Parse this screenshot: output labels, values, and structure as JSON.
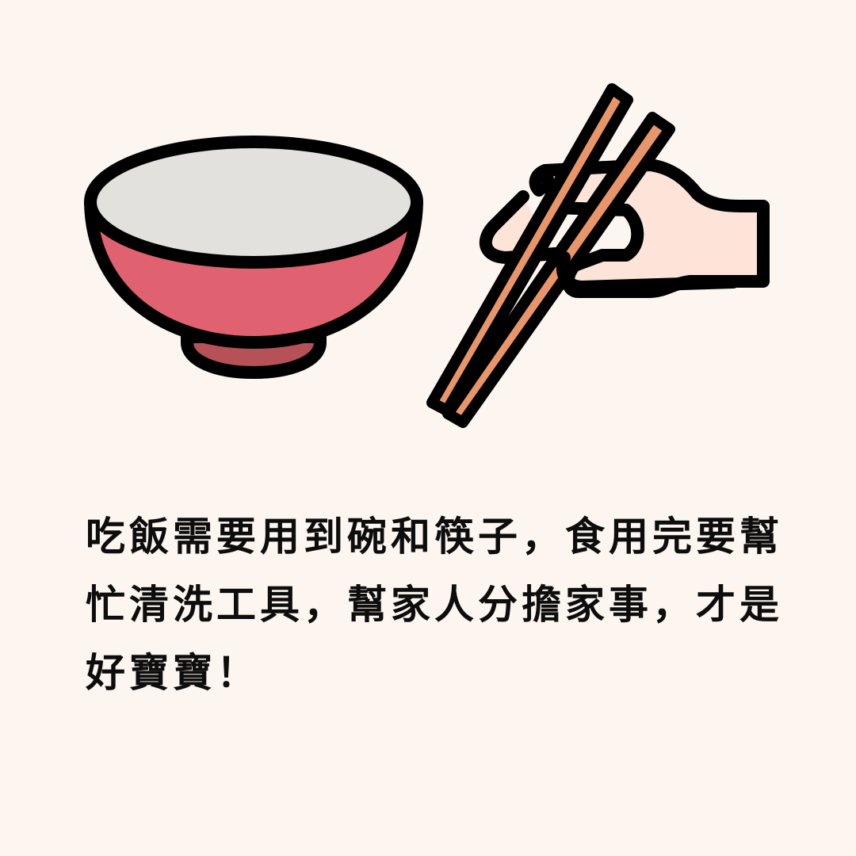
{
  "caption": {
    "lines": [
      "吃飯需要用到碗和筷子，食用完要幫",
      "忙清洗工具，幫家人分擔家事，才是",
      "好寶寶！"
    ]
  },
  "illustration": {
    "bowl_icon": "bowl-icon",
    "hand_icon": "hand-holding-chopsticks-icon",
    "chopsticks_icon": "chopsticks-icon"
  },
  "colors": {
    "background": "#fcf5f0",
    "outline": "#000000",
    "bowl_inner": "#e2e1de",
    "bowl_outer": "#e0616f",
    "bowl_foot": "#b55157",
    "hand": "#fde3d8",
    "chopsticks": "#e8956a",
    "text": "#0d0d0d"
  }
}
